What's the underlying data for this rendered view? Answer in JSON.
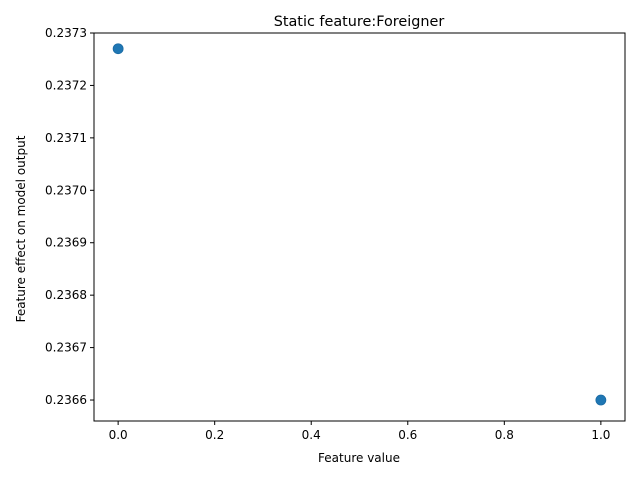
{
  "chart_data": {
    "type": "scatter",
    "title": "Static feature:Foreigner",
    "xlabel": "Feature value",
    "ylabel": "Feature effect on model output",
    "xlim": [
      -0.05,
      1.05
    ],
    "ylim": [
      0.23656,
      0.2373
    ],
    "x_ticks": [
      0.0,
      0.2,
      0.4,
      0.6,
      0.8,
      1.0
    ],
    "x_tick_labels": [
      "0.0",
      "0.2",
      "0.4",
      "0.6",
      "0.8",
      "1.0"
    ],
    "y_ticks": [
      0.2366,
      0.2367,
      0.2368,
      0.2369,
      0.237,
      0.2371,
      0.2372,
      0.2373
    ],
    "y_tick_labels": [
      "0.2366",
      "0.2367",
      "0.2368",
      "0.2369",
      "0.2370",
      "0.2371",
      "0.2372",
      "0.2373"
    ],
    "series": [
      {
        "name": "Foreigner",
        "color": "#1f77b4",
        "points": [
          {
            "x": 0.0,
            "y": 0.23727
          },
          {
            "x": 1.0,
            "y": 0.2366
          }
        ]
      }
    ],
    "grid": false
  }
}
